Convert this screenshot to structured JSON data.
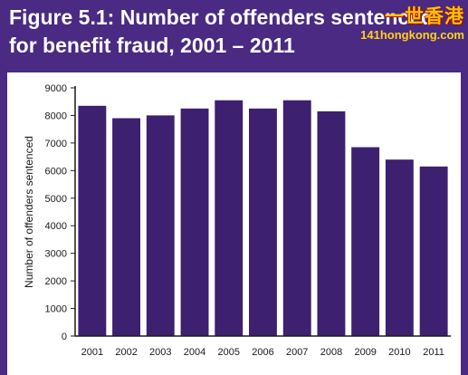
{
  "header": {
    "title_line1": "Figure 5.1: Number of offenders sentenced",
    "title_line2": "for benefit fraud, 2001 – 2011"
  },
  "watermark": {
    "cjk_text": "一世香港",
    "url_text": "141hongkong.com"
  },
  "colors": {
    "band": "#4a2a82",
    "bar": "#3d2070",
    "axis": "#1a1a1a"
  },
  "chart_data": {
    "type": "bar",
    "title": "Figure 5.1: Number of offenders sentenced for benefit fraud, 2001 – 2011",
    "xlabel": "",
    "ylabel": "Number of offenders sentenced",
    "categories": [
      "2001",
      "2002",
      "2003",
      "2004",
      "2005",
      "2006",
      "2007",
      "2008",
      "2009",
      "2010",
      "2011"
    ],
    "values": [
      8350,
      7900,
      8000,
      8250,
      8550,
      8250,
      8550,
      8150,
      6850,
      6400,
      6150
    ],
    "ylim": [
      0,
      9000
    ],
    "yticks": [
      0,
      1000,
      2000,
      3000,
      4000,
      5000,
      6000,
      7000,
      8000,
      9000
    ],
    "grid": false,
    "legend": "none"
  }
}
